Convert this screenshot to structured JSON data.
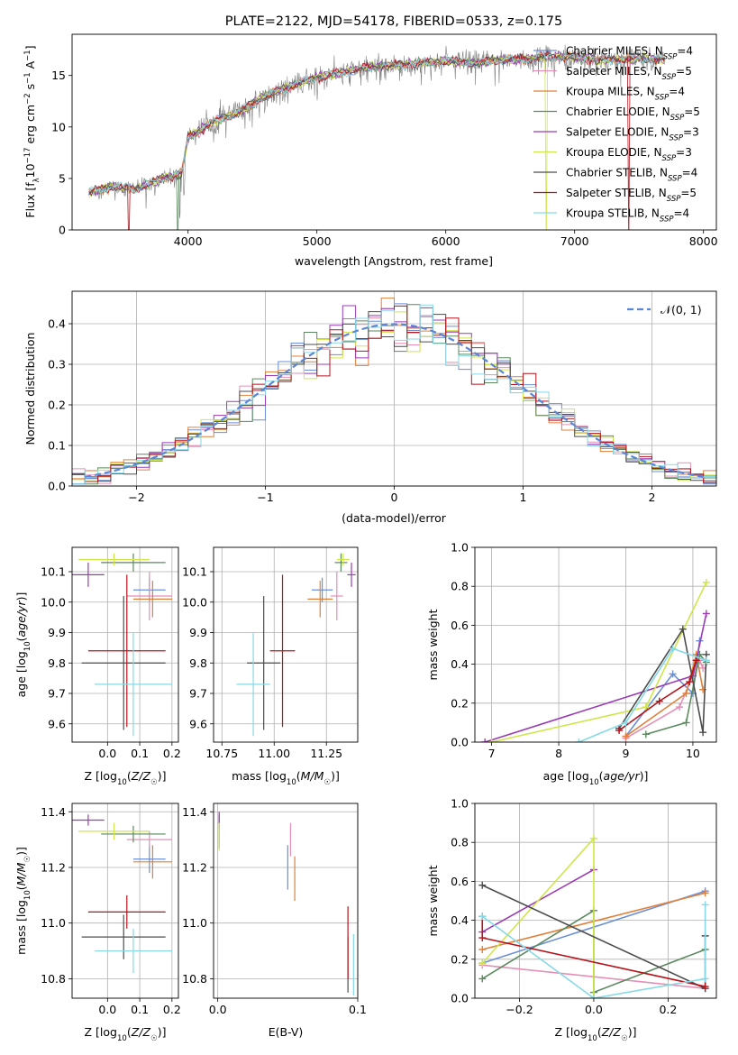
{
  "colors": {
    "Chabrier MILES": "#6b8fd8",
    "Salpeter MILES": "#e58fb6",
    "Kroupa MILES": "#e0803a",
    "Chabrier ELODIE": "#5a8a5e",
    "Salpeter ELODIE": "#9b3cb5",
    "Kroupa ELODIE": "#cfe64a",
    "Chabrier STELIB": "#4d4d4d",
    "Salpeter STELIB": "#b5141c",
    "Kroupa STELIB": "#86d9e6"
  },
  "chart_data": [
    {
      "id": "spectrum",
      "type": "line",
      "title": "PLATE=2122, MJD=54178, FIBERID=0533, z=0.175",
      "xlabel": "wavelength [Angstrom, rest frame]",
      "ylabel_parts": [
        "Flux [f",
        "λ",
        "10",
        "−17",
        " erg cm",
        "−2",
        " s",
        "−1",
        " A",
        "−1",
        "]"
      ],
      "xlim": [
        3100,
        8100
      ],
      "ylim": [
        0,
        19
      ],
      "xticks": [
        4000,
        5000,
        6000,
        7000,
        8000
      ],
      "yticks": [
        0,
        5,
        10,
        15
      ],
      "legend_position": "upper-right",
      "legend": [
        {
          "name": "Chabrier MILES",
          "nssp": "4"
        },
        {
          "name": "Salpeter MILES",
          "nssp": "5"
        },
        {
          "name": "Kroupa MILES",
          "nssp": "4"
        },
        {
          "name": "Chabrier ELODIE",
          "nssp": "5"
        },
        {
          "name": "Salpeter ELODIE",
          "nssp": "3"
        },
        {
          "name": "Kroupa ELODIE",
          "nssp": "3"
        },
        {
          "name": "Chabrier STELIB",
          "nssp": "4"
        },
        {
          "name": "Salpeter STELIB",
          "nssp": "5"
        },
        {
          "name": "Kroupa STELIB",
          "nssp": "4"
        }
      ],
      "nssp_label": "N",
      "nssp_sub": "SSP",
      "continuum_x": [
        3200,
        3400,
        3600,
        3800,
        3950,
        4000,
        4200,
        4400,
        4600,
        4800,
        5000,
        5200,
        5400,
        5600,
        5800,
        6000,
        6200,
        6400,
        6600,
        6800,
        7000,
        7200,
        7400,
        7600,
        7700
      ],
      "continuum_y": [
        3.5,
        4.2,
        4.0,
        5.0,
        5.5,
        9.0,
        10.5,
        11.5,
        13.0,
        14.0,
        14.8,
        15.3,
        15.8,
        16.0,
        16.2,
        16.4,
        16.2,
        16.5,
        16.6,
        16.8,
        16.8,
        16.5,
        16.6,
        16.6,
        16.5
      ],
      "model_drops": [
        {
          "series": "Salpeter STELIB",
          "x": 3540
        },
        {
          "series": "Chabrier ELODIE",
          "x": 3920
        },
        {
          "series": "Kroupa ELODIE",
          "x": 6780
        },
        {
          "series": "Salpeter STELIB",
          "x": 7420
        }
      ]
    },
    {
      "id": "residuals",
      "type": "histogram",
      "xlabel": "(data-model)/error",
      "ylabel": "Normed distribution",
      "xlim": [
        -2.5,
        2.5
      ],
      "ylim": [
        0,
        0.48
      ],
      "xticks": [
        -2,
        -1,
        0,
        1,
        2
      ],
      "yticks": [
        0.0,
        0.1,
        0.2,
        0.3,
        0.4
      ],
      "grid": true,
      "legend_position": "upper-right",
      "reference_label": "𝒩(0, 1)",
      "reference_color": "#5b86d8",
      "bins": 50
    },
    {
      "id": "age-vs-Z",
      "type": "errorbar",
      "xlabel": "Z [log₁₀(Z/Z☉)]",
      "ylabel": "age  [log₁₀(age/yr)]",
      "xlim": [
        -0.11,
        0.22
      ],
      "ylim": [
        9.54,
        10.18
      ],
      "xticks": [
        0.0,
        0.1,
        0.2
      ],
      "yticks": [
        9.6,
        9.7,
        9.8,
        9.9,
        10.0,
        10.1
      ],
      "grid": true,
      "points": [
        {
          "series": "Chabrier MILES",
          "x": 0.13,
          "xerr": 0.05,
          "y": 10.04,
          "yerr": 0.04
        },
        {
          "series": "Salpeter MILES",
          "x": 0.13,
          "xerr": 0.07,
          "y": 10.02,
          "yerr": 0.08
        },
        {
          "series": "Kroupa MILES",
          "x": 0.14,
          "xerr": 0.06,
          "y": 10.01,
          "yerr": 0.06
        },
        {
          "series": "Chabrier ELODIE",
          "x": 0.08,
          "xerr": 0.1,
          "y": 10.13,
          "yerr": 0.03
        },
        {
          "series": "Salpeter ELODIE",
          "x": -0.06,
          "xerr": 0.05,
          "y": 10.09,
          "yerr": 0.04
        },
        {
          "series": "Kroupa ELODIE",
          "x": 0.02,
          "xerr": 0.11,
          "y": 10.14,
          "yerr": 0.02
        },
        {
          "series": "Chabrier STELIB",
          "x": 0.05,
          "xerr": 0.13,
          "y": 9.8,
          "yerr": 0.22
        },
        {
          "series": "Salpeter STELIB",
          "x": 0.06,
          "xerr": 0.12,
          "y": 9.84,
          "yerr": 0.25
        },
        {
          "series": "Kroupa STELIB",
          "x": 0.08,
          "xerr": 0.12,
          "y": 9.73,
          "yerr": 0.17
        }
      ]
    },
    {
      "id": "age-vs-mass",
      "type": "errorbar",
      "xlabel": "mass [log₁₀(M/M☉)]",
      "xlim": [
        10.71,
        11.4
      ],
      "ylim": [
        9.54,
        10.18
      ],
      "xticks": [
        10.75,
        11.0,
        11.25
      ],
      "yticks": [
        9.6,
        9.7,
        9.8,
        9.9,
        10.0,
        10.1
      ],
      "tick_labels_x": [
        "10.75",
        "11.00",
        "11.25"
      ],
      "grid": true,
      "points": [
        {
          "series": "Chabrier MILES",
          "x": 11.23,
          "xerr": 0.05,
          "y": 10.04,
          "yerr": 0.04
        },
        {
          "series": "Salpeter MILES",
          "x": 11.3,
          "xerr": 0.03,
          "y": 10.02,
          "yerr": 0.08
        },
        {
          "series": "Kroupa MILES",
          "x": 11.22,
          "xerr": 0.06,
          "y": 10.01,
          "yerr": 0.06
        },
        {
          "series": "Chabrier ELODIE",
          "x": 11.32,
          "xerr": 0.03,
          "y": 10.13,
          "yerr": 0.03
        },
        {
          "series": "Salpeter ELODIE",
          "x": 11.37,
          "xerr": 0.02,
          "y": 10.09,
          "yerr": 0.04
        },
        {
          "series": "Kroupa ELODIE",
          "x": 11.33,
          "xerr": 0.03,
          "y": 10.14,
          "yerr": 0.02
        },
        {
          "series": "Chabrier STELIB",
          "x": 10.95,
          "xerr": 0.08,
          "y": 9.8,
          "yerr": 0.22
        },
        {
          "series": "Salpeter STELIB",
          "x": 11.04,
          "xerr": 0.06,
          "y": 9.84,
          "yerr": 0.25
        },
        {
          "series": "Kroupa STELIB",
          "x": 10.9,
          "xerr": 0.08,
          "y": 9.73,
          "yerr": 0.17
        }
      ]
    },
    {
      "id": "weight-vs-age",
      "type": "line",
      "xlabel": "age  [log₁₀(age/yr)]",
      "ylabel": "mass weight",
      "xlim": [
        6.75,
        10.35
      ],
      "ylim": [
        0,
        1.0
      ],
      "xticks": [
        7,
        8,
        9,
        10
      ],
      "yticks": [
        0.0,
        0.2,
        0.4,
        0.6,
        0.8,
        1.0
      ],
      "grid": true,
      "series": [
        {
          "name": "Chabrier MILES",
          "x": [
            9.0,
            9.7,
            10.0,
            10.1
          ],
          "y": [
            0.03,
            0.35,
            0.25,
            0.52
          ]
        },
        {
          "name": "Salpeter MILES",
          "x": [
            9.0,
            9.8,
            10.1,
            10.15
          ],
          "y": [
            0.02,
            0.18,
            0.42,
            0.38
          ]
        },
        {
          "name": "Kroupa MILES",
          "x": [
            9.0,
            9.9,
            10.05,
            10.15
          ],
          "y": [
            0.03,
            0.25,
            0.45,
            0.27
          ]
        },
        {
          "name": "Chabrier ELODIE",
          "x": [
            9.3,
            9.9,
            10.1,
            10.2
          ],
          "y": [
            0.04,
            0.1,
            0.45,
            0.41
          ]
        },
        {
          "name": "Salpeter ELODIE",
          "x": [
            6.9,
            10.0,
            10.2
          ],
          "y": [
            0.0,
            0.34,
            0.66
          ]
        },
        {
          "name": "Kroupa ELODIE",
          "x": [
            7.0,
            9.3,
            10.2
          ],
          "y": [
            0.0,
            0.18,
            0.82
          ]
        },
        {
          "name": "Chabrier STELIB",
          "x": [
            8.9,
            9.85,
            10.15,
            10.2
          ],
          "y": [
            0.07,
            0.58,
            0.05,
            0.45
          ]
        },
        {
          "name": "Salpeter STELIB",
          "x": [
            8.9,
            9.5,
            9.95,
            10.05
          ],
          "y": [
            0.06,
            0.21,
            0.31,
            0.42
          ]
        },
        {
          "name": "Kroupa STELIB",
          "x": [
            8.3,
            9.0,
            9.7,
            10.2
          ],
          "y": [
            0.0,
            0.1,
            0.48,
            0.42
          ]
        }
      ]
    },
    {
      "id": "mass-vs-Z",
      "type": "errorbar",
      "xlabel": "Z [log₁₀(Z/Z☉)]",
      "ylabel": "mass [log₁₀(M/M☉)]",
      "xlim": [
        -0.11,
        0.22
      ],
      "ylim": [
        10.73,
        11.43
      ],
      "xticks": [
        0.0,
        0.1,
        0.2
      ],
      "yticks": [
        10.8,
        11.0,
        11.2,
        11.4
      ],
      "grid": true,
      "points": [
        {
          "series": "Chabrier MILES",
          "x": 0.13,
          "xerr": 0.05,
          "y": 11.23,
          "yerr": 0.05
        },
        {
          "series": "Salpeter MILES",
          "x": 0.13,
          "xerr": 0.07,
          "y": 11.3,
          "yerr": 0.03
        },
        {
          "series": "Kroupa MILES",
          "x": 0.14,
          "xerr": 0.06,
          "y": 11.22,
          "yerr": 0.06
        },
        {
          "series": "Chabrier ELODIE",
          "x": 0.08,
          "xerr": 0.1,
          "y": 11.32,
          "yerr": 0.03
        },
        {
          "series": "Salpeter ELODIE",
          "x": -0.06,
          "xerr": 0.05,
          "y": 11.37,
          "yerr": 0.02
        },
        {
          "series": "Kroupa ELODIE",
          "x": 0.02,
          "xerr": 0.11,
          "y": 11.33,
          "yerr": 0.03
        },
        {
          "series": "Chabrier STELIB",
          "x": 0.05,
          "xerr": 0.13,
          "y": 10.95,
          "yerr": 0.08
        },
        {
          "series": "Salpeter STELIB",
          "x": 0.06,
          "xerr": 0.12,
          "y": 11.04,
          "yerr": 0.06
        },
        {
          "series": "Kroupa STELIB",
          "x": 0.08,
          "xerr": 0.12,
          "y": 10.9,
          "yerr": 0.08
        }
      ]
    },
    {
      "id": "mass-vs-EBV",
      "type": "errorbar",
      "xlabel": "E(B-V)",
      "xlim": [
        -0.003,
        0.1
      ],
      "ylim": [
        10.73,
        11.43
      ],
      "xticks": [
        0.0,
        0.1
      ],
      "yticks": [
        10.8,
        11.0,
        11.2,
        11.4
      ],
      "grid": true,
      "points": [
        {
          "series": "Chabrier MILES",
          "x": 0.05,
          "xerr": 0.0,
          "y": 11.2,
          "yerr": 0.08
        },
        {
          "series": "Salpeter MILES",
          "x": 0.052,
          "xerr": 0.0,
          "y": 11.3,
          "yerr": 0.06
        },
        {
          "series": "Kroupa MILES",
          "x": 0.055,
          "xerr": 0.0,
          "y": 11.16,
          "yerr": 0.08
        },
        {
          "series": "Chabrier ELODIE",
          "x": 0.001,
          "xerr": 0.0,
          "y": 11.33,
          "yerr": 0.06
        },
        {
          "series": "Salpeter ELODIE",
          "x": 0.001,
          "xerr": 0.0,
          "y": 11.37,
          "yerr": 0.03
        },
        {
          "series": "Kroupa ELODIE",
          "x": 0.001,
          "xerr": 0.0,
          "y": 11.31,
          "yerr": 0.05
        },
        {
          "series": "Chabrier STELIB",
          "x": 0.093,
          "xerr": 0.0,
          "y": 10.85,
          "yerr": 0.1
        },
        {
          "series": "Salpeter STELIB",
          "x": 0.093,
          "xerr": 0.0,
          "y": 10.93,
          "yerr": 0.13
        },
        {
          "series": "Kroupa STELIB",
          "x": 0.097,
          "xerr": 0.0,
          "y": 10.85,
          "yerr": 0.11
        }
      ]
    },
    {
      "id": "weight-vs-Z",
      "type": "line",
      "xlabel": "Z [log₁₀(Z/Z☉)]",
      "ylabel": "mass weight",
      "xlim": [
        -0.32,
        0.33
      ],
      "ylim": [
        0,
        1.0
      ],
      "xticks": [
        -0.2,
        0.0,
        0.2
      ],
      "yticks": [
        0.0,
        0.2,
        0.4,
        0.6,
        0.8,
        1.0
      ],
      "tick_labels_x": [
        "−0.2",
        "0.0",
        "0.2"
      ],
      "grid": true,
      "series": [
        {
          "name": "Chabrier MILES",
          "x": [
            -0.3,
            0.3
          ],
          "y": [
            0.18,
            0.55
          ]
        },
        {
          "name": "Salpeter MILES",
          "x": [
            -0.3,
            0.3
          ],
          "y": [
            0.17,
            0.05
          ]
        },
        {
          "name": "Kroupa MILES",
          "x": [
            -0.3,
            0.3
          ],
          "y": [
            0.25,
            0.54
          ]
        },
        {
          "name": "Chabrier ELODIE",
          "x": [
            -0.3,
            0.0,
            0.0,
            0.3
          ],
          "y": [
            0.1,
            0.45,
            0.03,
            0.25
          ]
        },
        {
          "name": "Salpeter ELODIE",
          "x": [
            -0.3,
            0.0
          ],
          "y": [
            0.34,
            0.66
          ]
        },
        {
          "name": "Kroupa ELODIE",
          "x": [
            -0.3,
            0.0,
            0.0
          ],
          "y": [
            0.18,
            0.82,
            0.0
          ]
        },
        {
          "name": "Chabrier STELIB",
          "x": [
            -0.3,
            0.3,
            0.3
          ],
          "y": [
            0.58,
            0.05,
            0.32
          ]
        },
        {
          "name": "Salpeter STELIB",
          "x": [
            -0.3,
            -0.3,
            0.3
          ],
          "y": [
            0.42,
            0.31,
            0.06
          ]
        },
        {
          "name": "Kroupa STELIB",
          "x": [
            -0.3,
            0.0,
            0.3,
            0.3
          ],
          "y": [
            0.42,
            0.0,
            0.1,
            0.48
          ]
        }
      ]
    }
  ]
}
